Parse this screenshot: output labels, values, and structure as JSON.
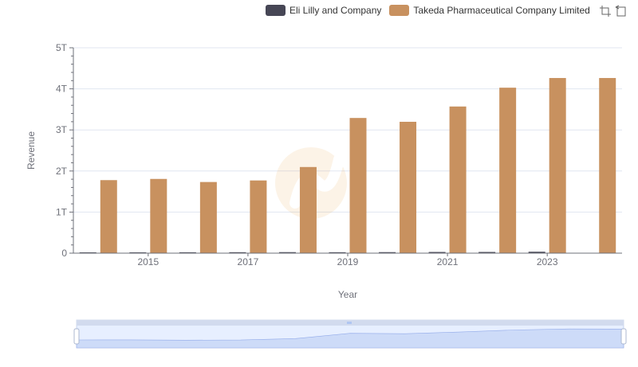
{
  "chart_data": {
    "type": "bar",
    "xlabel": "Year",
    "ylabel": "Revenue",
    "categories": [
      "2014",
      "2015",
      "2016",
      "2017",
      "2018",
      "2019",
      "2020",
      "2021",
      "2022",
      "2023",
      "2024"
    ],
    "x_tick_labels": [
      "2015",
      "2017",
      "2019",
      "2021",
      "2023"
    ],
    "y_tick_labels": [
      "0",
      "1T",
      "2T",
      "3T",
      "4T",
      "5T"
    ],
    "ylim": [
      0,
      5000000000000
    ],
    "series": [
      {
        "name": "Eli Lilly and Company",
        "color": "#464655",
        "values": [
          19600000000,
          19960000000,
          21220000000,
          22870000000,
          24560000000,
          22320000000,
          24540000000,
          28320000000,
          28540000000,
          34120000000,
          0
        ]
      },
      {
        "name": "Takeda Pharmaceutical Company Limited",
        "color": "#C8915F",
        "values": [
          1778000000000,
          1807000000000,
          1732000000000,
          1770000000000,
          2097000000000,
          3291000000000,
          3198000000000,
          3570000000000,
          4028000000000,
          4264000000000,
          4264000000000
        ]
      }
    ],
    "legend_position": "top-right",
    "grid": true
  },
  "toolbox": {
    "icons": [
      "zoom-icon",
      "zoom-reset-icon"
    ]
  }
}
